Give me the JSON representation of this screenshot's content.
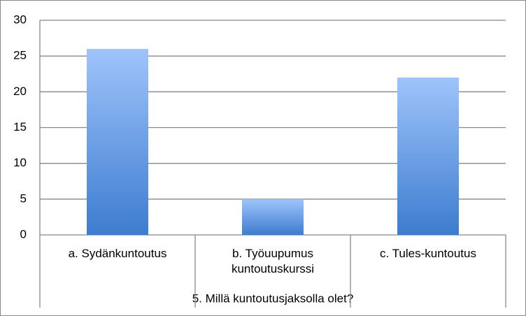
{
  "chart_data": {
    "type": "bar",
    "x_label": "5. Millä kuntoutusjaksolla olet?",
    "categories": [
      "a. Sydänkuntoutus",
      "b. Työuupumus kuntoutuskurssi",
      "c. Tules-kuntoutus"
    ],
    "values": [
      26,
      5,
      22
    ],
    "color": "#3d7ccf",
    "color_top": "#9fc4fb",
    "ylim": [
      0,
      30
    ],
    "yticks": [
      0,
      5,
      10,
      15,
      20,
      25,
      30
    ],
    "grid": true
  }
}
